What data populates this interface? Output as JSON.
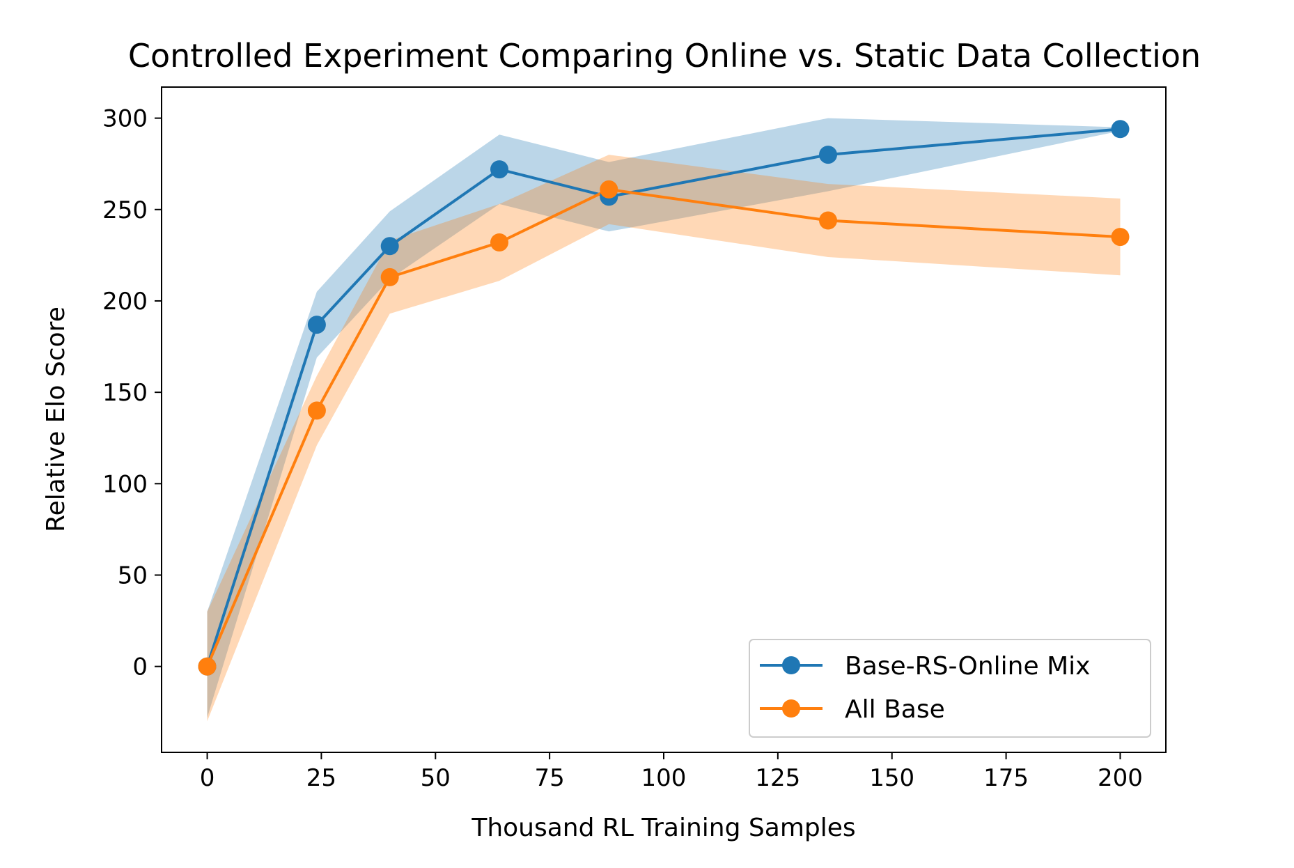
{
  "chart_data": {
    "type": "line",
    "title": "Controlled Experiment Comparing Online vs. Static Data Collection",
    "xlabel": "Thousand RL Training Samples",
    "ylabel": "Relative Elo Score",
    "xlim": [
      -10,
      210
    ],
    "ylim": [
      -47,
      317
    ],
    "xticks": [
      0,
      25,
      50,
      75,
      100,
      125,
      150,
      175,
      200
    ],
    "yticks": [
      0,
      50,
      100,
      150,
      200,
      250,
      300
    ],
    "grid": false,
    "legend_position": "lower-right",
    "series": [
      {
        "name": "Base-RS-Online Mix",
        "color": "#1f77b4",
        "x": [
          0,
          24,
          40,
          64,
          88,
          136,
          200
        ],
        "y": [
          0,
          187,
          230,
          272,
          257,
          280,
          294
        ],
        "lower": [
          -28,
          169,
          212,
          253,
          238,
          260,
          293
        ],
        "upper": [
          30,
          205,
          249,
          291,
          276,
          300,
          295
        ]
      },
      {
        "name": "All Base",
        "color": "#ff7f0e",
        "x": [
          0,
          24,
          40,
          64,
          88,
          136,
          200
        ],
        "y": [
          0,
          140,
          213,
          232,
          261,
          244,
          235
        ],
        "lower": [
          -30,
          121,
          193,
          211,
          242,
          224,
          214
        ],
        "upper": [
          30,
          159,
          233,
          253,
          280,
          264,
          256
        ]
      }
    ]
  }
}
